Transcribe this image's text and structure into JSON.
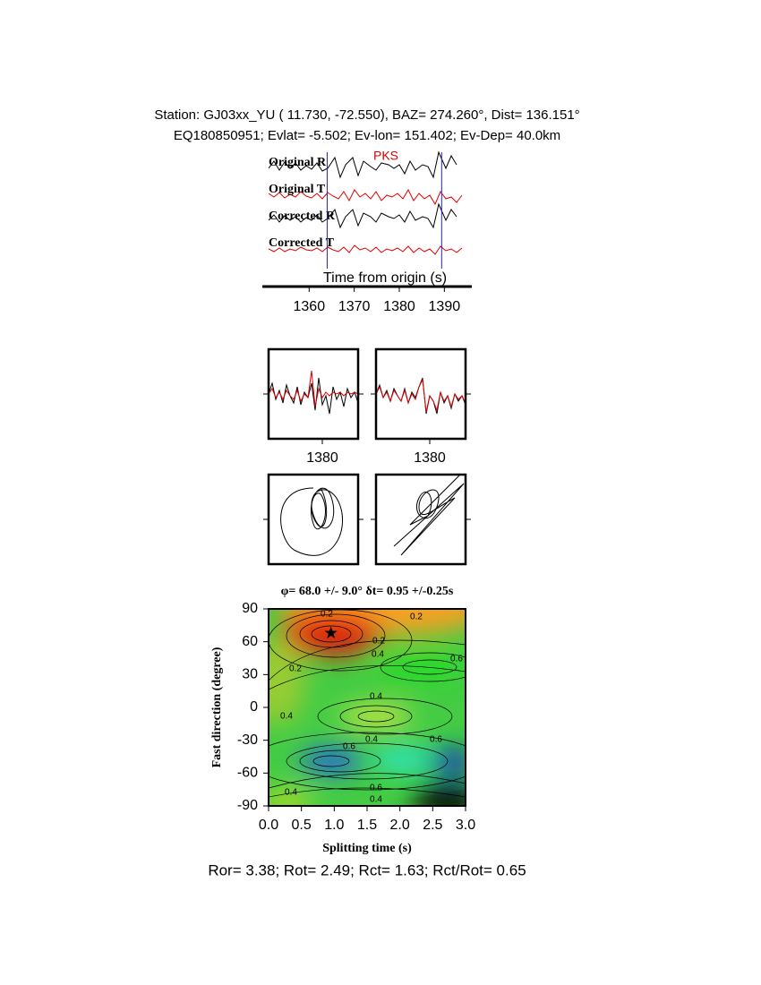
{
  "header": {
    "line1": "Station: GJ03xx_YU (  11.730,  -72.550), BAZ=  274.260°, Dist=  136.151°",
    "line2": "EQ180850951; Evlat=  -5.502; Ev-lon= 151.402; Ev-Dep= 40.0km"
  },
  "traces": {
    "labels": [
      "Original R",
      "Original T",
      "Corrected R",
      "Corrected T"
    ],
    "phase": "PKS",
    "xlabel": "Time from origin (s)",
    "xlim": [
      1351,
      1394.7
    ],
    "xticks": [
      1360,
      1370,
      1380,
      1390
    ],
    "window": [
      1364,
      1389.4
    ]
  },
  "panels": [
    {
      "xlim": [
        1368,
        1388
      ],
      "xticks": [
        1380
      ]
    },
    {
      "xlim": [
        1368,
        1388
      ],
      "xticks": [
        1380
      ]
    }
  ],
  "contour": {
    "title": "φ= 68.0 +/- 9.0° δt= 0.95 +/-0.25s",
    "xlabel": "Splitting time (s)",
    "ylabel": "Fast direction (degree)",
    "xlim": [
      0,
      3
    ],
    "ylim": [
      -90,
      90
    ],
    "xticks": [
      {
        "value": 0,
        "label": "0.0"
      },
      0.5,
      {
        "value": 1,
        "label": "1.0"
      },
      1.5,
      {
        "value": 2,
        "label": "2.0"
      },
      2.5,
      {
        "value": 3,
        "label": "3.0"
      }
    ],
    "yticks": [
      90,
      60,
      30,
      0,
      -30,
      -60,
      -90
    ],
    "best_fit": {
      "x": 0.95,
      "y": 68
    },
    "contour_labels": [
      "0.2",
      "0.2",
      "0.2",
      "0.4",
      "0.2",
      "0.4",
      "0.4",
      "0.6",
      "0.4",
      "0.6",
      "0.6",
      "0.4",
      "0.6",
      "0.4"
    ]
  },
  "footer": "Ror= 3.38; Rot= 2.49; Rct= 1.63; Rct/Rot= 0.65"
}
